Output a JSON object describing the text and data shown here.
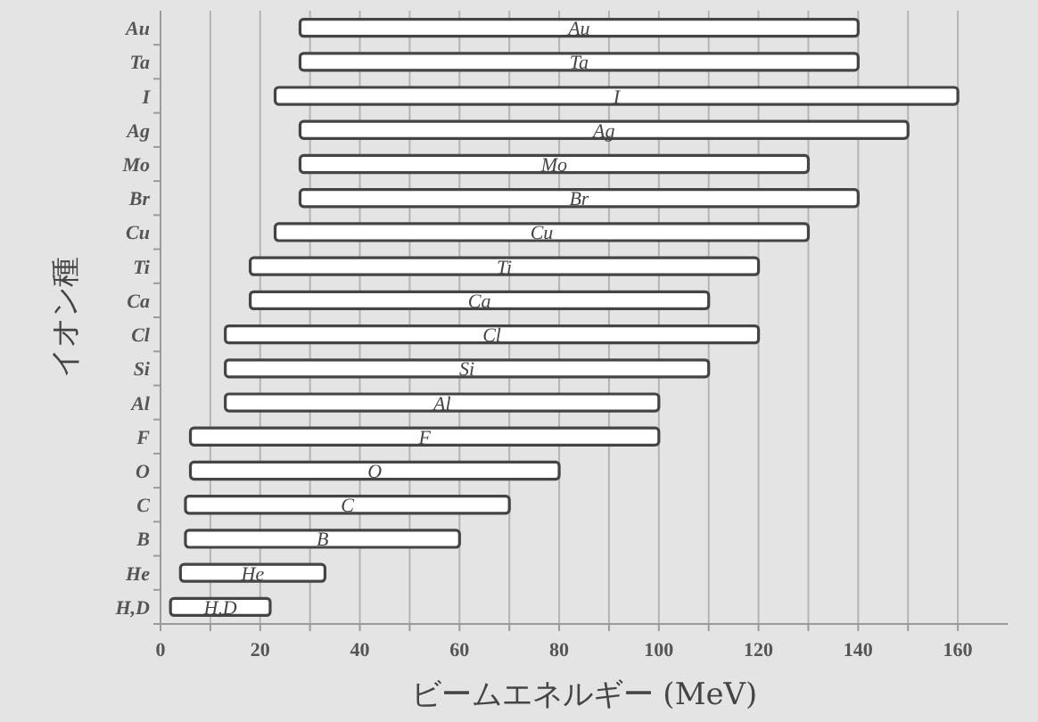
{
  "chart_data": {
    "type": "bar",
    "orientation": "horizontal",
    "xlabel": "ビームエネルギー (MeV)",
    "ylabel": "イオン種",
    "categories": [
      "Au",
      "Ta",
      "I",
      "Ag",
      "Mo",
      "Br",
      "Cu",
      "Ti",
      "Ca",
      "Cl",
      "Si",
      "Al",
      "F",
      "O",
      "C",
      "B",
      "He",
      "H,D"
    ],
    "base": [
      28,
      28,
      23,
      28,
      28,
      28,
      23,
      18,
      18,
      13,
      13,
      13,
      6,
      6,
      5,
      5,
      4,
      2
    ],
    "values": [
      112,
      112,
      137,
      122,
      102,
      112,
      107,
      102,
      92,
      107,
      97,
      87,
      94,
      74,
      65,
      55,
      29,
      20
    ],
    "color": "#ffffff",
    "xlim": [
      0,
      170
    ],
    "xticks": [
      0,
      {
        "value": 10,
        "label": null
      },
      20,
      {
        "value": 30,
        "label": null
      },
      40,
      {
        "value": 50,
        "label": null
      },
      60,
      {
        "value": 70,
        "label": null
      },
      80,
      {
        "value": 90,
        "label": null
      },
      100,
      {
        "value": 110,
        "label": null
      },
      120,
      {
        "value": 130,
        "label": null
      },
      140,
      {
        "value": 150,
        "label": null
      },
      160
    ],
    "grid": "x"
  }
}
